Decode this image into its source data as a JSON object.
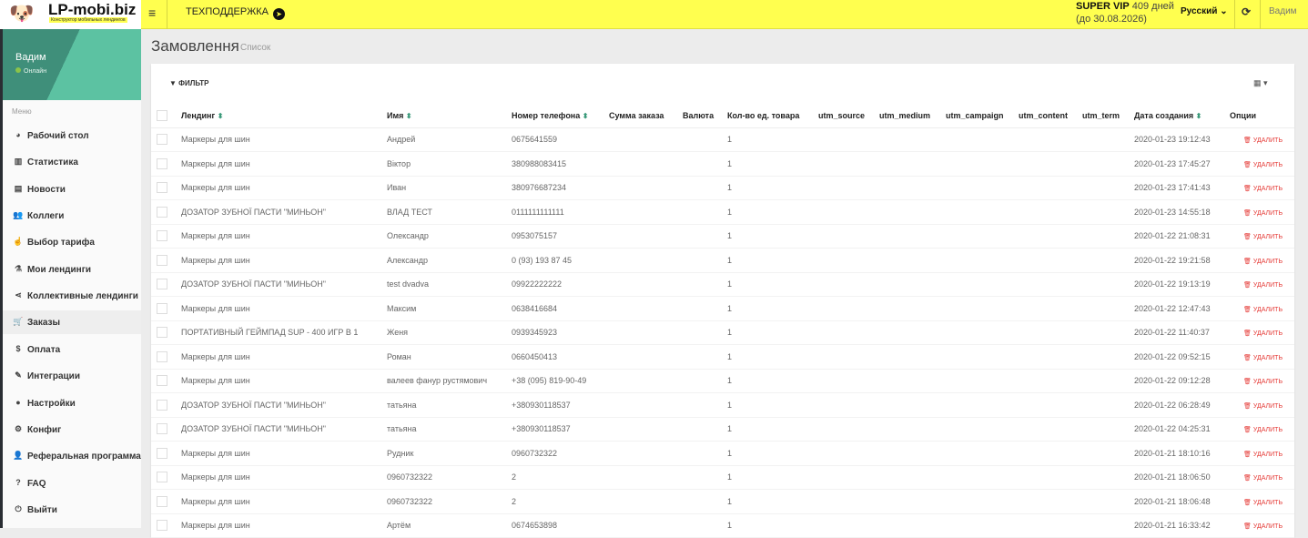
{
  "header": {
    "brand": "LP-mobi.biz",
    "tagline": "Конструктор мобильных лендингов",
    "support": "ТЕХПОДДЕРЖКА",
    "plan_name": "SUPER VIP",
    "plan_days": "409 дней",
    "plan_until": "(до 30.08.2026)",
    "language": "Русский",
    "user": "Вадим"
  },
  "sidebar": {
    "user_name": "Вадим",
    "status": "Онлайн",
    "menu_label": "Меню",
    "items": [
      {
        "label": "Рабочий стол",
        "icon": "dashboard-icon",
        "glyph": "◕"
      },
      {
        "label": "Статистика",
        "icon": "bar-chart-icon",
        "glyph": "▥"
      },
      {
        "label": "Новости",
        "icon": "newspaper-icon",
        "glyph": "▤"
      },
      {
        "label": "Коллеги",
        "icon": "users-icon",
        "glyph": "👥"
      },
      {
        "label": "Выбор тарифа",
        "icon": "hand-pointer-icon",
        "glyph": "☝"
      },
      {
        "label": "Мои лендинги",
        "icon": "flask-icon",
        "glyph": "⚗"
      },
      {
        "label": "Коллективные лендинги",
        "icon": "share-icon",
        "glyph": "⋖"
      },
      {
        "label": "Заказы",
        "icon": "cart-icon",
        "glyph": "🛒",
        "active": true
      },
      {
        "label": "Оплата",
        "icon": "dollar-icon",
        "glyph": "$"
      },
      {
        "label": "Интеграции",
        "icon": "plug-icon",
        "glyph": "✎"
      },
      {
        "label": "Настройки",
        "icon": "user-icon",
        "glyph": "●"
      },
      {
        "label": "Конфиг",
        "icon": "cogs-icon",
        "glyph": "⚙"
      },
      {
        "label": "Реферальная программа",
        "icon": "user-plus-icon",
        "glyph": "👤"
      },
      {
        "label": "FAQ",
        "icon": "question-icon",
        "glyph": "?"
      },
      {
        "label": "Выйти",
        "icon": "power-icon",
        "glyph": "⏻"
      }
    ]
  },
  "main": {
    "title": "Замовлення",
    "subtitle": "Список",
    "filter": "ФИЛЬТР",
    "delete_label": "УДАЛИТЬ",
    "columns": [
      "Лендинг",
      "Имя",
      "Номер телефона",
      "Сумма заказа",
      "Валюта",
      "Кол-во ед. товара",
      "utm_source",
      "utm_medium",
      "utm_campaign",
      "utm_content",
      "utm_term",
      "Дата создания",
      "Опции"
    ],
    "rows": [
      [
        "Маркеры для шин",
        "Андрей",
        "0675641559",
        "1",
        "2020-01-23 19:12:43"
      ],
      [
        "Маркеры для шин",
        "Віктор",
        "380988083415",
        "1",
        "2020-01-23 17:45:27"
      ],
      [
        "Маркеры для шин",
        "Иван",
        "380976687234",
        "1",
        "2020-01-23 17:41:43"
      ],
      [
        "ДОЗАТОР ЗУБНОЇ ПАСТИ \"МИНЬОН\"",
        "ВЛАД ТЕСТ",
        "0111111111111",
        "1",
        "2020-01-23 14:55:18"
      ],
      [
        "Маркеры для шин",
        "Олександр",
        "0953075157",
        "1",
        "2020-01-22 21:08:31"
      ],
      [
        "Маркеры для шин",
        "Александр",
        "0 (93) 193 87 45",
        "1",
        "2020-01-22 19:21:58"
      ],
      [
        "ДОЗАТОР ЗУБНОЇ ПАСТИ \"МИНЬОН\"",
        "test dvadva",
        "09922222222",
        "1",
        "2020-01-22 19:13:19"
      ],
      [
        "Маркеры для шин",
        "Максим",
        "0638416684",
        "1",
        "2020-01-22 12:47:43"
      ],
      [
        "ПОРТАТИВНЫЙ ГЕЙМПАД SUP - 400 ИГР В 1",
        "Женя",
        "0939345923",
        "1",
        "2020-01-22 11:40:37"
      ],
      [
        "Маркеры для шин",
        "Роман",
        "0660450413",
        "1",
        "2020-01-22 09:52:15"
      ],
      [
        "Маркеры для шин",
        "валеев фанур рустямович",
        "+38 (095) 819-90-49",
        "1",
        "2020-01-22 09:12:28"
      ],
      [
        "ДОЗАТОР ЗУБНОЇ ПАСТИ \"МИНЬОН\"",
        "татьяна",
        "+380930118537",
        "1",
        "2020-01-22 06:28:49"
      ],
      [
        "ДОЗАТОР ЗУБНОЇ ПАСТИ \"МИНЬОН\"",
        "татьяна",
        "+380930118537",
        "1",
        "2020-01-22 04:25:31"
      ],
      [
        "Маркеры для шин",
        "Рудник",
        "0960732322",
        "1",
        "2020-01-21 18:10:16"
      ],
      [
        "Маркеры для шин",
        "0960732322",
        "2",
        "1",
        "2020-01-21 18:06:50"
      ],
      [
        "Маркеры для шин",
        "0960732322",
        "2",
        "1",
        "2020-01-21 18:06:48"
      ],
      [
        "Маркеры для шин",
        "Артём",
        "0674653898",
        "1",
        "2020-01-21 16:33:42"
      ]
    ]
  }
}
